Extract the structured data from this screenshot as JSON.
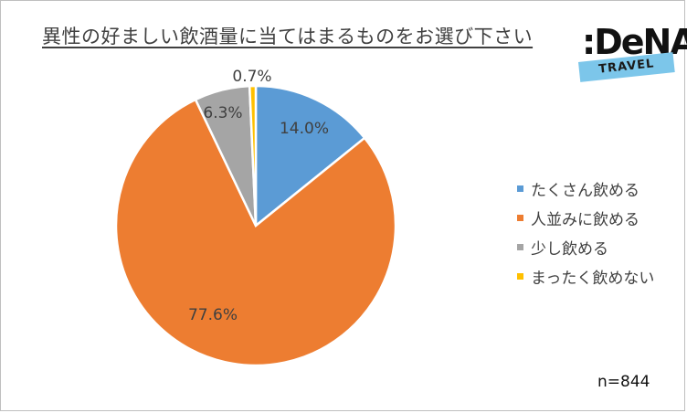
{
  "chart_data": {
    "type": "pie",
    "title": "異性の好ましい飲酒量に当てはまるものをお選び下さい",
    "categories": [
      "たくさん飲める",
      "人並みに飲める",
      "少し飲める",
      "まったく飲めない"
    ],
    "values": [
      14.0,
      77.6,
      6.3,
      0.7
    ],
    "data_labels": [
      "14.0%",
      "77.6%",
      "6.3%",
      "0.7%"
    ],
    "colors": [
      "#5b9bd5",
      "#ed7d31",
      "#a5a5a5",
      "#ffc000"
    ],
    "legend_position": "right",
    "note": "n=844"
  },
  "logo": {
    "text": ":DeNA",
    "band_text": "TRAVEL"
  }
}
